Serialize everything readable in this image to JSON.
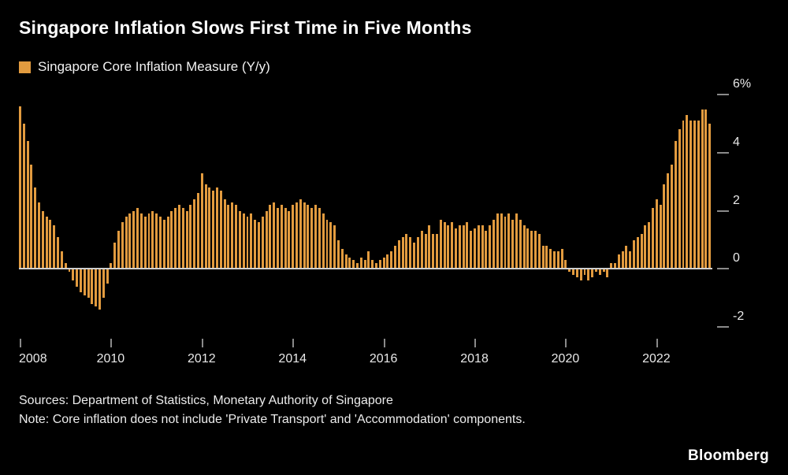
{
  "header": {
    "title": "Singapore Inflation Slows First Time in Five Months"
  },
  "legend": {
    "label": "Singapore Core Inflation Measure (Y/y)"
  },
  "chart_data": {
    "type": "bar",
    "title": "Singapore Core Inflation Measure (Y/y)",
    "unit": "percent year-on-year",
    "bar_color": "#e29b3f",
    "start_year": 2008,
    "start_month": 1,
    "end_year": 2023,
    "end_month": 3,
    "x_tick_labels": [
      "2008",
      "2010",
      "2012",
      "2014",
      "2016",
      "2018",
      "2020",
      "2022"
    ],
    "y_ticks": [
      6,
      4,
      2,
      0,
      -2
    ],
    "y_tick_labels": [
      "6%",
      "4",
      "2",
      "0",
      "-2"
    ],
    "ylim": [
      -2.7,
      6.3
    ],
    "grid": "zero-line-only",
    "legend_position": "top-left",
    "values": [
      5.6,
      5.0,
      4.4,
      3.6,
      2.8,
      2.3,
      2.0,
      1.8,
      1.7,
      1.5,
      1.1,
      0.6,
      0.2,
      -0.1,
      -0.4,
      -0.6,
      -0.8,
      -0.9,
      -1.0,
      -1.2,
      -1.3,
      -1.4,
      -1.0,
      -0.5,
      0.2,
      0.9,
      1.3,
      1.6,
      1.8,
      1.9,
      2.0,
      2.1,
      1.9,
      1.8,
      1.9,
      2.0,
      1.9,
      1.8,
      1.7,
      1.8,
      2.0,
      2.1,
      2.2,
      2.1,
      2.0,
      2.2,
      2.4,
      2.6,
      3.3,
      2.9,
      2.8,
      2.7,
      2.8,
      2.7,
      2.4,
      2.2,
      2.3,
      2.2,
      2.0,
      1.9,
      1.8,
      1.9,
      1.7,
      1.6,
      1.8,
      2.0,
      2.2,
      2.3,
      2.1,
      2.2,
      2.1,
      2.0,
      2.2,
      2.3,
      2.4,
      2.3,
      2.2,
      2.1,
      2.2,
      2.1,
      1.9,
      1.7,
      1.6,
      1.5,
      1.0,
      0.7,
      0.5,
      0.4,
      0.3,
      0.2,
      0.4,
      0.3,
      0.6,
      0.3,
      0.2,
      0.3,
      0.4,
      0.5,
      0.6,
      0.8,
      1.0,
      1.1,
      1.2,
      1.1,
      0.9,
      1.1,
      1.3,
      1.2,
      1.5,
      1.2,
      1.2,
      1.7,
      1.6,
      1.5,
      1.6,
      1.4,
      1.5,
      1.5,
      1.6,
      1.3,
      1.4,
      1.5,
      1.5,
      1.3,
      1.5,
      1.7,
      1.9,
      1.9,
      1.8,
      1.9,
      1.7,
      1.9,
      1.7,
      1.5,
      1.4,
      1.3,
      1.3,
      1.2,
      0.8,
      0.8,
      0.7,
      0.6,
      0.6,
      0.7,
      0.3,
      -0.1,
      -0.2,
      -0.3,
      -0.4,
      -0.2,
      -0.4,
      -0.3,
      -0.1,
      -0.2,
      -0.1,
      -0.3,
      0.2,
      0.2,
      0.5,
      0.6,
      0.8,
      0.6,
      1.0,
      1.1,
      1.2,
      1.5,
      1.6,
      2.1,
      2.4,
      2.2,
      2.9,
      3.3,
      3.6,
      4.4,
      4.8,
      5.1,
      5.3,
      5.1,
      5.1,
      5.1,
      5.5,
      5.5,
      5.0
    ]
  },
  "footer": {
    "sources": "Sources: Department of Statistics, Monetary Authority of Singapore",
    "note": "Note: Core inflation does not include 'Private Transport' and 'Accommodation' components.",
    "brand": "Bloomberg"
  }
}
